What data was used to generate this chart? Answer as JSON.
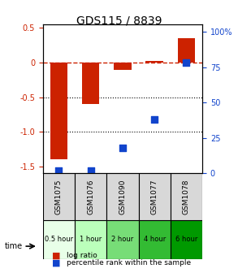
{
  "title": "GDS115 / 8839",
  "samples": [
    "GSM1075",
    "GSM1076",
    "GSM1090",
    "GSM1077",
    "GSM1078"
  ],
  "time_labels": [
    "0.5 hour",
    "1 hour",
    "2 hour",
    "4 hour",
    "6 hour"
  ],
  "log_ratios": [
    -1.4,
    -0.6,
    -0.1,
    0.02,
    0.35
  ],
  "percentiles": [
    2,
    2,
    18,
    38,
    78
  ],
  "ylim_left": [
    -1.6,
    0.55
  ],
  "ylim_right": [
    0,
    105
  ],
  "yticks_left": [
    0.5,
    0,
    -0.5,
    -1.0,
    -1.5
  ],
  "yticks_right": [
    0,
    25,
    50,
    75,
    100
  ],
  "bar_color": "#cc2200",
  "dot_color": "#1144cc",
  "hline_color": "#cc2200",
  "hline_style": "--",
  "dotline1": -0.5,
  "dotline2": -1.0,
  "bar_width": 0.55,
  "time_colors": [
    "#ccffcc",
    "#88ee88",
    "#55dd55",
    "#22cc22",
    "#00aa00"
  ],
  "time_bg_colors": [
    "#e8ffe8",
    "#bbffbb",
    "#88ee88",
    "#44cc44",
    "#00bb00"
  ],
  "legend_log": "log ratio",
  "legend_pct": "percentile rank within the sample",
  "xlabel": "time",
  "background_color": "#ffffff"
}
